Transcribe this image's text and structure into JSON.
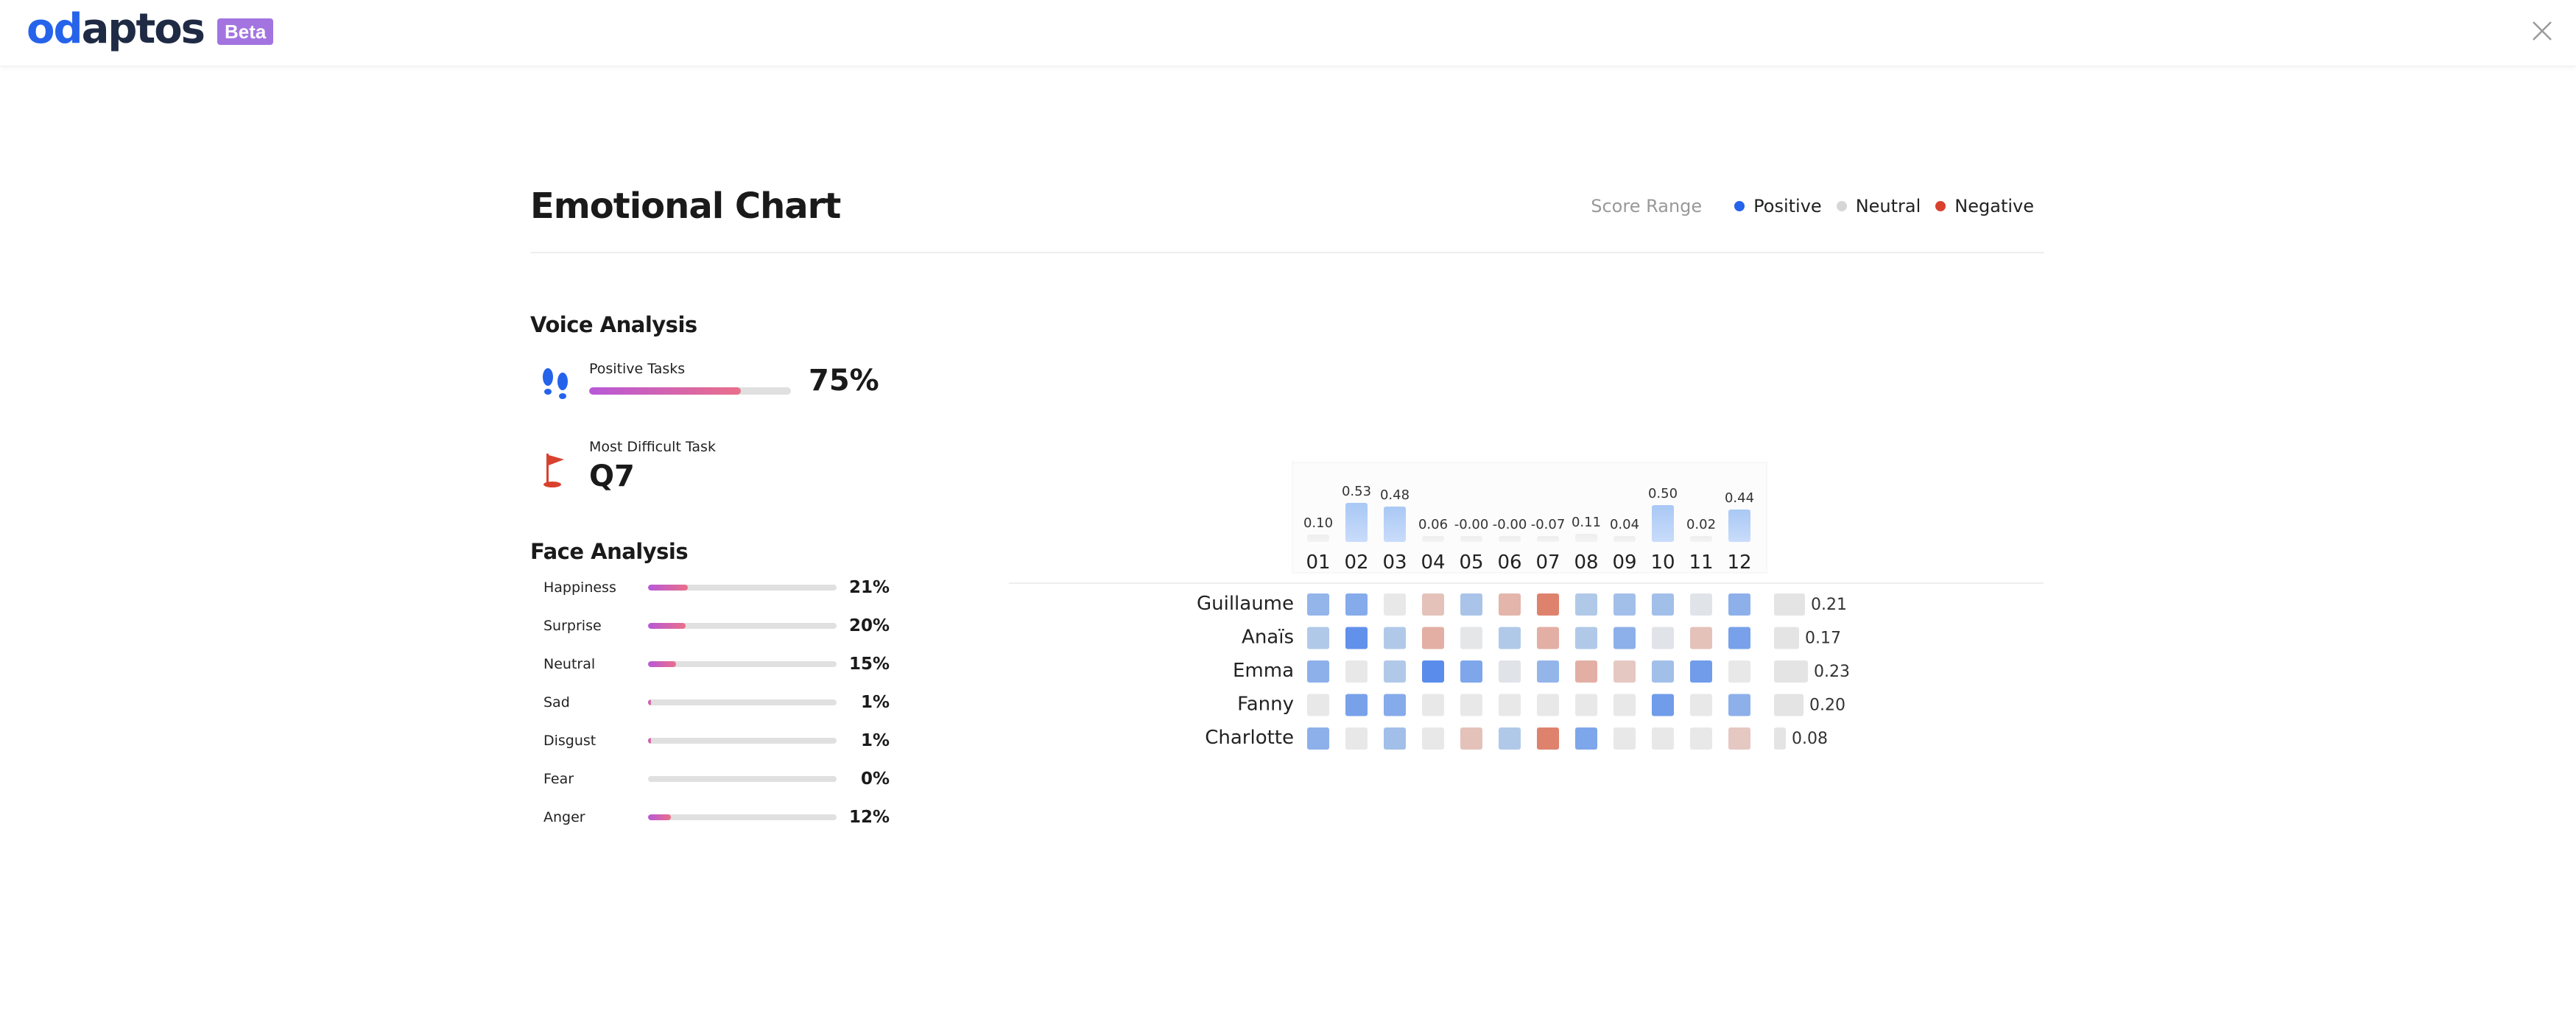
{
  "header": {
    "logo_od": "od",
    "logo_rest": "aptos",
    "beta": "Beta"
  },
  "title": "Emotional Chart",
  "legend": {
    "label": "Score Range",
    "items": [
      {
        "label": "Positive",
        "color": "#2563eb"
      },
      {
        "label": "Neutral",
        "color": "#d6d6d6"
      },
      {
        "label": "Negative",
        "color": "#d9412f"
      }
    ]
  },
  "voice": {
    "heading": "Voice Analysis",
    "positive_label": "Positive Tasks",
    "positive_value": 0.75,
    "positive_pct": "75%",
    "difficult_label": "Most Difficult Task",
    "difficult_value": "Q7"
  },
  "face": {
    "heading": "Face Analysis",
    "rows": [
      {
        "name": "Happiness",
        "pct": "21%",
        "value": 0.21
      },
      {
        "name": "Surprise",
        "pct": "20%",
        "value": 0.2
      },
      {
        "name": "Neutral",
        "pct": "15%",
        "value": 0.15
      },
      {
        "name": "Sad",
        "pct": "1%",
        "value": 0.01
      },
      {
        "name": "Disgust",
        "pct": "1%",
        "value": 0.01
      },
      {
        "name": "Fear",
        "pct": "0%",
        "value": 0.0
      },
      {
        "name": "Anger",
        "pct": "12%",
        "value": 0.12
      }
    ]
  },
  "chart_data": {
    "type": "heatmap",
    "columns": [
      "01",
      "02",
      "03",
      "04",
      "05",
      "06",
      "07",
      "08",
      "09",
      "10",
      "11",
      "12"
    ],
    "column_scores": [
      0.1,
      0.53,
      0.48,
      0.06,
      -0.0,
      -0.0,
      -0.07,
      0.11,
      0.04,
      0.5,
      0.02,
      0.44
    ],
    "column_labels": [
      "0.10",
      "0.53",
      "0.48",
      "0.06",
      "-0.00",
      "-0.00",
      "-0.07",
      "0.11",
      "0.04",
      "0.50",
      "0.02",
      "0.44"
    ],
    "rows": [
      {
        "name": "Guillaume",
        "score": 0.21,
        "score_label": "0.21",
        "values": [
          0.5,
          0.6,
          0.0,
          -0.3,
          0.35,
          -0.4,
          -0.8,
          0.3,
          0.4,
          0.4,
          0.05,
          0.55
        ]
      },
      {
        "name": "Anaïs",
        "score": 0.17,
        "score_label": "0.17",
        "values": [
          0.3,
          0.85,
          0.3,
          -0.45,
          0.02,
          0.3,
          -0.45,
          0.3,
          0.55,
          0.05,
          -0.3,
          0.7
        ]
      },
      {
        "name": "Emma",
        "score": 0.23,
        "score_label": "0.23",
        "values": [
          0.55,
          0.0,
          0.3,
          0.9,
          0.65,
          0.05,
          0.5,
          -0.45,
          -0.25,
          0.4,
          0.75,
          0.0
        ]
      },
      {
        "name": "Fanny",
        "score": 0.2,
        "score_label": "0.20",
        "values": [
          0.0,
          0.7,
          0.6,
          0.0,
          0.0,
          0.0,
          0.0,
          0.0,
          0.0,
          0.75,
          0.0,
          0.55
        ]
      },
      {
        "name": "Charlotte",
        "score": 0.08,
        "score_label": "0.08",
        "values": [
          0.55,
          0.0,
          0.4,
          0.0,
          -0.3,
          0.3,
          -0.8,
          0.65,
          0.0,
          0.0,
          0.0,
          -0.25
        ]
      }
    ],
    "value_range": [
      -1,
      1
    ]
  }
}
